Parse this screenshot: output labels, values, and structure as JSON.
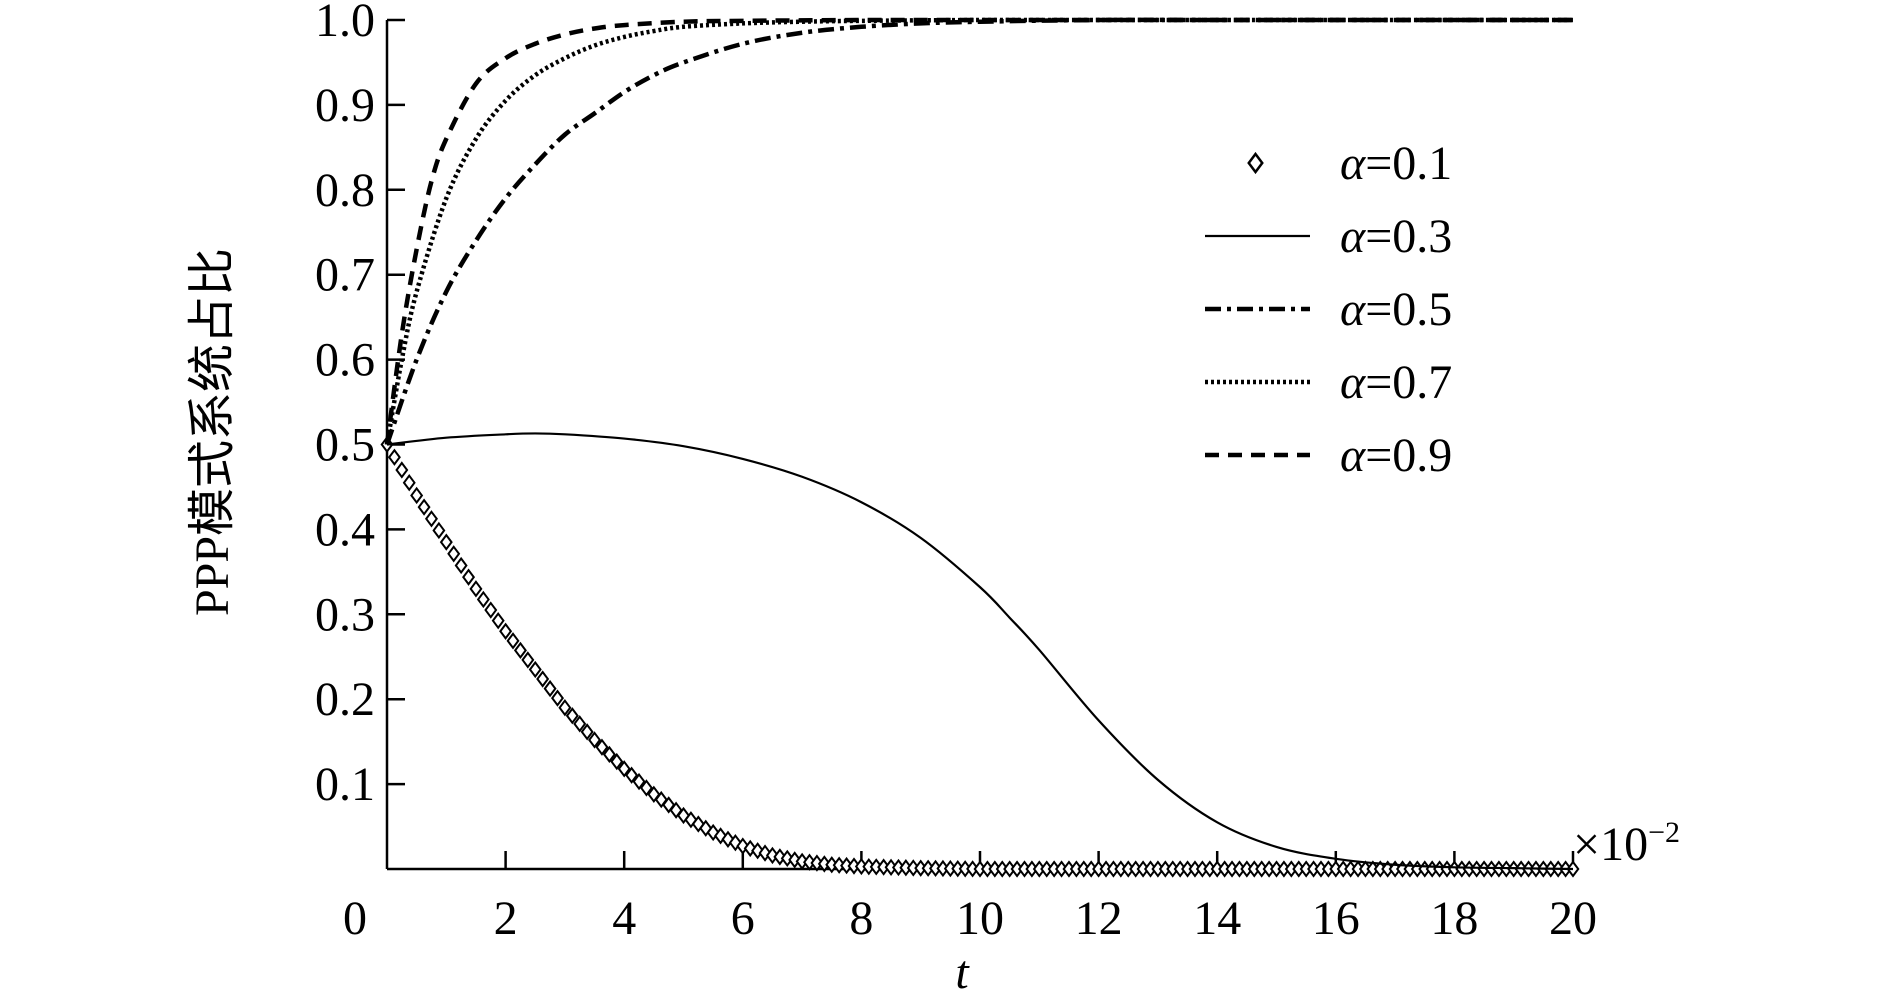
{
  "chart_data": {
    "type": "line",
    "title": "",
    "xlabel": "t",
    "ylabel": "PPP模式系统占比",
    "x_multiplier": "×10",
    "x_multiplier_exp": "−2",
    "xlim": [
      0,
      20
    ],
    "ylim": [
      0,
      1.0
    ],
    "x_ticks": [
      0,
      2,
      4,
      6,
      8,
      10,
      12,
      14,
      16,
      18,
      20
    ],
    "x_tick_labels": [
      "0",
      "2",
      "4",
      "6",
      "8",
      "10",
      "12",
      "14",
      "16",
      "18",
      "20"
    ],
    "y_ticks": [
      0.1,
      0.2,
      0.3,
      0.4,
      0.5,
      0.6,
      0.7,
      0.8,
      0.9,
      1.0
    ],
    "y_tick_labels": [
      "0.1",
      "0.2",
      "0.3",
      "0.4",
      "0.5",
      "0.6",
      "0.7",
      "0.8",
      "0.9",
      "1.0"
    ],
    "grid": false,
    "legend_position": "top-right",
    "series": [
      {
        "name": "α=0.1",
        "name_symbol": "α",
        "name_value": "=0.1",
        "style": "diamond-markers",
        "x": [
          0,
          0.5,
          1,
          1.5,
          2,
          2.5,
          3,
          3.5,
          4,
          4.5,
          5,
          5.5,
          6,
          6.5,
          7,
          7.5,
          8,
          9,
          10,
          11,
          12,
          13,
          14,
          15,
          16,
          17,
          18,
          19,
          20
        ],
        "y": [
          0.5,
          0.44,
          0.385,
          0.33,
          0.28,
          0.235,
          0.19,
          0.152,
          0.118,
          0.088,
          0.063,
          0.043,
          0.027,
          0.016,
          0.009,
          0.005,
          0.003,
          0.001,
          0,
          0,
          0,
          0,
          0,
          0,
          0,
          0,
          0,
          0,
          0
        ]
      },
      {
        "name": "α=0.3",
        "name_symbol": "α",
        "name_value": "=0.3",
        "style": "solid",
        "x": [
          0,
          1,
          2,
          2.5,
          3,
          4,
          5,
          6,
          7,
          8,
          9,
          10,
          10.5,
          11,
          12,
          13,
          14,
          15,
          16,
          17,
          18,
          19,
          20
        ],
        "y": [
          0.5,
          0.508,
          0.512,
          0.513,
          0.512,
          0.507,
          0.498,
          0.483,
          0.462,
          0.432,
          0.39,
          0.332,
          0.296,
          0.258,
          0.175,
          0.105,
          0.055,
          0.026,
          0.012,
          0.005,
          0.002,
          0.001,
          0
        ]
      },
      {
        "name": "α=0.5",
        "name_symbol": "α",
        "name_value": "=0.5",
        "style": "dash-dot",
        "x": [
          0,
          0.5,
          1,
          1.5,
          2,
          2.5,
          3,
          3.5,
          4,
          4.5,
          5,
          6,
          7,
          8,
          9,
          10,
          12,
          14,
          16,
          18,
          20
        ],
        "y": [
          0.5,
          0.6,
          0.68,
          0.74,
          0.79,
          0.83,
          0.865,
          0.89,
          0.915,
          0.935,
          0.95,
          0.972,
          0.985,
          0.992,
          0.996,
          0.998,
          1.0,
          1.0,
          1.0,
          1.0,
          1.0
        ]
      },
      {
        "name": "α=0.7",
        "name_symbol": "α",
        "name_value": "=0.7",
        "style": "dotted",
        "x": [
          0,
          0.25,
          0.5,
          1,
          1.5,
          2,
          2.5,
          3,
          3.5,
          4,
          4.5,
          5,
          6,
          7,
          8,
          10,
          12,
          14,
          16,
          18,
          20
        ],
        "y": [
          0.5,
          0.6,
          0.68,
          0.79,
          0.86,
          0.905,
          0.935,
          0.955,
          0.97,
          0.98,
          0.987,
          0.992,
          0.996,
          0.998,
          0.999,
          1.0,
          1.0,
          1.0,
          1.0,
          1.0,
          1.0
        ]
      },
      {
        "name": "α=0.9",
        "name_symbol": "α",
        "name_value": "=0.9",
        "style": "dashed",
        "x": [
          0,
          0.25,
          0.5,
          0.75,
          1,
          1.5,
          2,
          2.5,
          3,
          3.5,
          4,
          5,
          6,
          8,
          10,
          12,
          14,
          16,
          18,
          20
        ],
        "y": [
          0.5,
          0.63,
          0.73,
          0.81,
          0.86,
          0.925,
          0.955,
          0.972,
          0.983,
          0.99,
          0.994,
          0.998,
          0.999,
          1.0,
          1.0,
          1.0,
          1.0,
          1.0,
          1.0,
          1.0
        ]
      }
    ]
  }
}
